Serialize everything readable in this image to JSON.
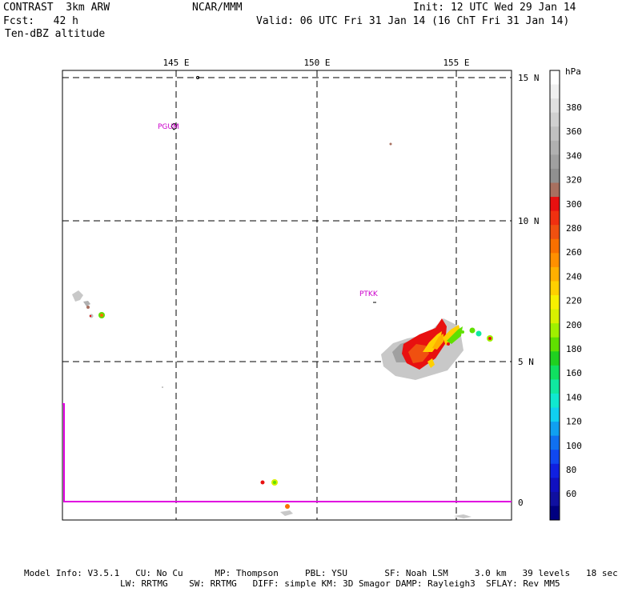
{
  "header": {
    "product": "CONTRAST  3km ARW",
    "center": "NCAR/MMM",
    "init": "Init: 12 UTC Wed 29 Jan 14",
    "fcst": "Fcst:   42 h",
    "valid": "Valid: 06 UTC Fri 31 Jan 14 (16 ChT Fri 31 Jan 14)",
    "field": "Ten-dBZ altitude"
  },
  "map": {
    "lon_labels": [
      "145 E",
      "150 E",
      "155 E"
    ],
    "lat_labels": [
      "15 N",
      "10 N",
      "5 N",
      "0"
    ],
    "stations": [
      "PGUM",
      "PTKK"
    ]
  },
  "colorbar": {
    "units": "hPa",
    "labels": [
      "380",
      "360",
      "340",
      "320",
      "300",
      "280",
      "260",
      "240",
      "220",
      "200",
      "180",
      "160",
      "140",
      "120",
      "100",
      "80",
      "60"
    ],
    "colors": [
      "#ffffff",
      "#f0f0f0",
      "#e0e0e0",
      "#d0d0d0",
      "#c0c0c0",
      "#b0b0b0",
      "#a0a0a0",
      "#909090",
      "#a87060",
      "#e81010",
      "#f03010",
      "#f05010",
      "#f87000",
      "#ff9000",
      "#ffb000",
      "#ffd000",
      "#f8f000",
      "#d8f000",
      "#a0f000",
      "#60e000",
      "#20d020",
      "#10e060",
      "#10e8a0",
      "#10e8d0",
      "#10d0f0",
      "#10a0f0",
      "#1070f0",
      "#1048f0",
      "#1020e0",
      "#1010c0",
      "#1010a0",
      "#000080"
    ]
  },
  "footer": {
    "line1": "Model Info: V3.5.1   CU: No Cu      MP: Thompson     PBL: YSU       SF: Noah LSM     3.0 km   39 levels   18 sec",
    "line2": "LW: RRTMG    SW: RRTMG   DIFF: simple KM: 3D Smagor DAMP: Rayleigh3  SFLAY: Rev MM5"
  }
}
